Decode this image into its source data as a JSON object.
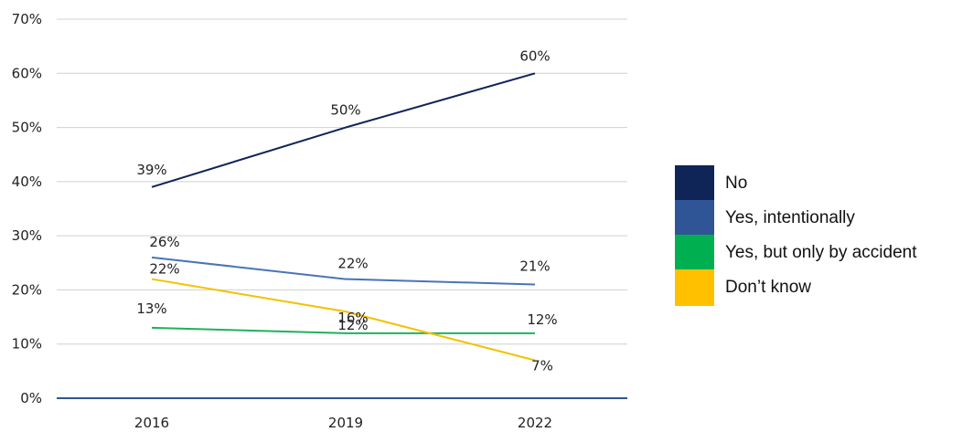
{
  "chart_data": {
    "type": "line",
    "categories": [
      "2016",
      "2019",
      "2022"
    ],
    "ylim": [
      0,
      70
    ],
    "yticks": [
      "0%",
      "10%",
      "20%",
      "30%",
      "40%",
      "50%",
      "60%",
      "70%"
    ],
    "grid": true,
    "legend_position": "right",
    "series": [
      {
        "name": "No",
        "color": "#0f2557",
        "values": [
          39,
          50,
          60
        ],
        "labels": [
          "39%",
          "50%",
          "60%"
        ]
      },
      {
        "name": "Yes, intentionally",
        "color": "#4a73b8",
        "values": [
          26,
          22,
          21
        ],
        "labels": [
          "26%",
          "22%",
          "21%"
        ]
      },
      {
        "name": "Yes, but only by accident",
        "color": "#1fb25a",
        "values": [
          13,
          12,
          12
        ],
        "labels": [
          "13%",
          "12%",
          "12%"
        ]
      },
      {
        "name": "Don’t know",
        "color": "#f2c200",
        "values": [
          22,
          16,
          7
        ],
        "labels": [
          "22%",
          "16%",
          "7%"
        ]
      }
    ]
  },
  "legend": {
    "items": [
      {
        "label": "No",
        "color": "#0f2557"
      },
      {
        "label": "Yes, intentionally",
        "color": "#2f5597"
      },
      {
        "label": "Yes, but only by accident",
        "color": "#00b050"
      },
      {
        "label": "Don’t know",
        "color": "#ffc000"
      }
    ]
  }
}
